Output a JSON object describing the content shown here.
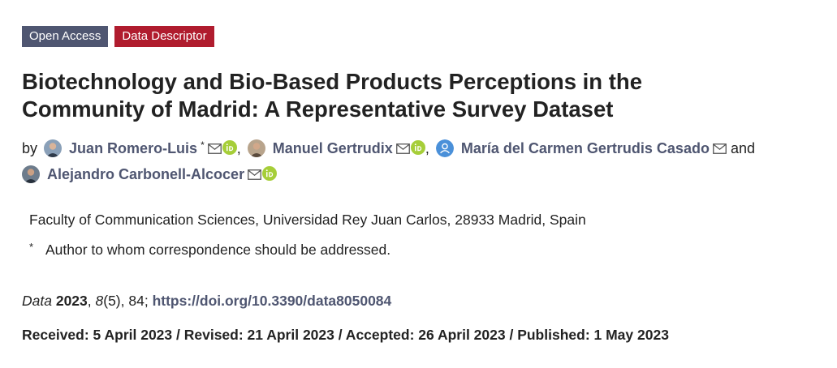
{
  "badges": {
    "open_access": "Open Access",
    "data_descriptor": "Data Descriptor"
  },
  "title_line1": "Biotechnology and Bio-Based Products Perceptions in the",
  "title_line2": "Community of Madrid: A Representative Survey Dataset",
  "authors": {
    "by": "by",
    "conj": "and",
    "list": [
      {
        "name": "Juan Romero-Luis",
        "mark": "*"
      },
      {
        "name": "Manuel Gertrudix"
      },
      {
        "name": "María del Carmen Gertrudis Casado"
      },
      {
        "name": "Alejandro Carbonell-Alcocer"
      }
    ]
  },
  "affiliation": "Faculty of Communication Sciences, Universidad Rey Juan Carlos, 28933 Madrid, Spain",
  "correspondence": {
    "mark": "*",
    "text": "Author to whom correspondence should be addressed."
  },
  "citation": {
    "journal": "Data",
    "year": "2023",
    "volume": "8",
    "issue_pages": "(5), 84; ",
    "doi": "https://doi.org/10.3390/data8050084"
  },
  "dates": "Received: 5 April 2023 / Revised: 21 April 2023 / Accepted: 26 April 2023 / Published: 1 May 2023",
  "colors": {
    "open_access_badge": "#4f5671",
    "data_descriptor_badge": "#b01c2e",
    "orcid": "#a6ce39",
    "link": "#4f5671"
  }
}
